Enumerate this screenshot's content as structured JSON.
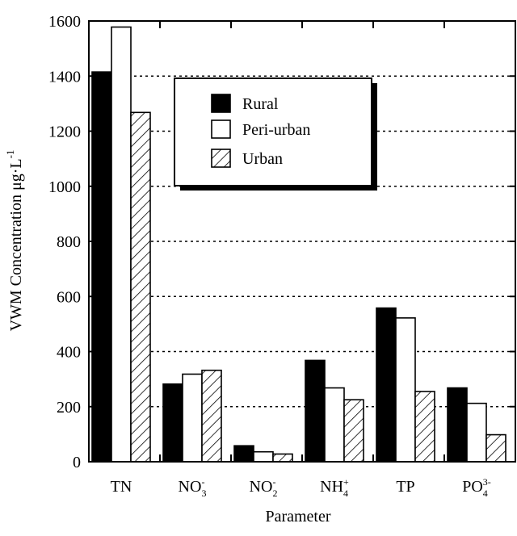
{
  "chart_data": {
    "type": "bar",
    "xlabel": "Parameter",
    "ylabel": "VWM Concentration μg·L",
    "ylabel_sup": "-1",
    "ylim": [
      0,
      1600
    ],
    "yticks": [
      0,
      200,
      400,
      600,
      800,
      1000,
      1200,
      1400,
      1600
    ],
    "grid": "horizontal dotted",
    "legend_position": "upper-center",
    "categories": [
      {
        "base": "TN",
        "sup": "",
        "sub": ""
      },
      {
        "base": "NO",
        "sup": "-",
        "sub": "3"
      },
      {
        "base": "NO",
        "sup": "-",
        "sub": "2"
      },
      {
        "base": "NH",
        "sup": "+",
        "sub": "4"
      },
      {
        "base": "TP",
        "sup": "",
        "sub": ""
      },
      {
        "base": "PO",
        "sup": "3-",
        "sub": "4"
      }
    ],
    "series": [
      {
        "name": "Rural",
        "fill": "solid-black",
        "values": [
          1415,
          282,
          58,
          368,
          558,
          268
        ]
      },
      {
        "name": "Peri-urban",
        "fill": "white",
        "values": [
          1578,
          318,
          36,
          268,
          522,
          212
        ]
      },
      {
        "name": "Urban",
        "fill": "diagonal-hatch",
        "values": [
          1268,
          332,
          28,
          225,
          255,
          98
        ]
      }
    ]
  }
}
